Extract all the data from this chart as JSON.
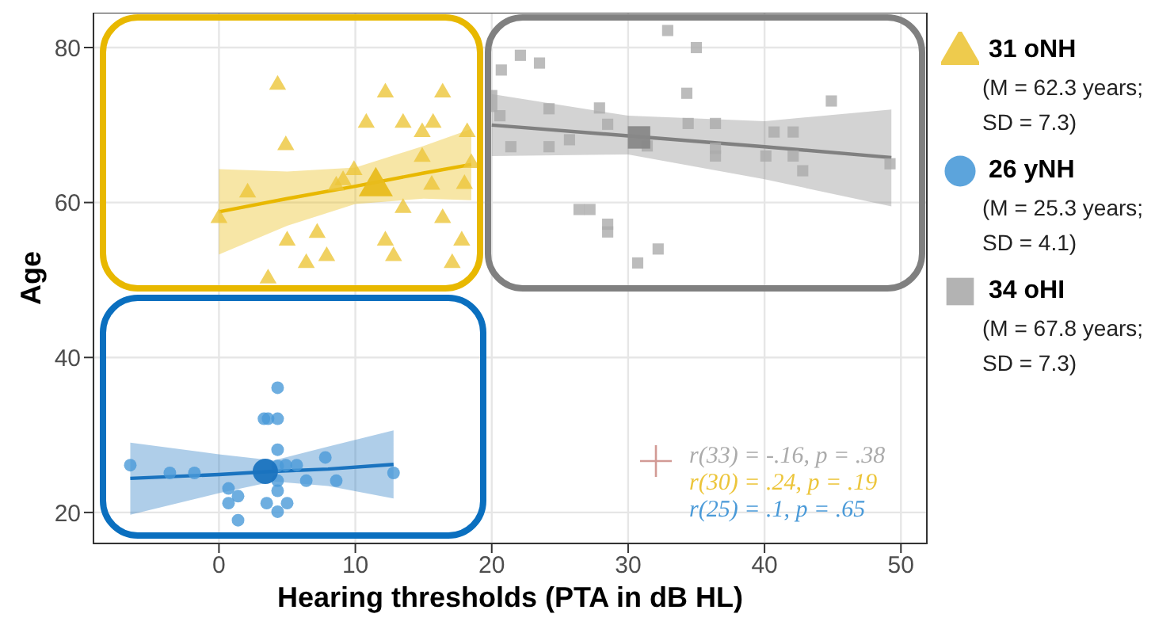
{
  "chart_data": {
    "type": "scatter",
    "xlabel": "Hearing thresholds (PTA in dB HL)",
    "ylabel": "Age",
    "xlim": [
      -9.2,
      51.9
    ],
    "ylim": [
      16,
      84.5
    ],
    "xticks": [
      0,
      10,
      20,
      30,
      40,
      50
    ],
    "yticks": [
      20,
      40,
      60,
      80
    ],
    "grid": true,
    "legend": "right",
    "series": [
      {
        "name": "31 oNH",
        "color": "#ecc53a",
        "marker": "triangle",
        "x": [
          0,
          2.1,
          4.3,
          4.9,
          5.0,
          3.6,
          6.4,
          7.2,
          7.9,
          8.6,
          9.1,
          9.9,
          10.8,
          12.2,
          12.2,
          12.8,
          13.5,
          13.5,
          14.9,
          14.9,
          15.7,
          15.6,
          16.4,
          16.4,
          17.1,
          18.0,
          17.8,
          18.2,
          18.5
        ],
        "values": [
          58.1,
          61.4,
          75.3,
          67.5,
          55.2,
          50.3,
          52.3,
          56.2,
          53.2,
          62.3,
          63.0,
          64.3,
          70.4,
          74.3,
          55.2,
          53.2,
          70.4,
          59.4,
          69.2,
          66.0,
          70.4,
          62.4,
          74.3,
          58.1,
          52.3,
          62.5,
          55.2,
          69.2,
          65.2
        ]
      },
      {
        "name": "26 yNH",
        "color": "#4a9ad8",
        "marker": "circle",
        "x": [
          -6.5,
          -3.6,
          -1.8,
          0.7,
          0.7,
          1.4,
          1.4,
          3.3,
          3.6,
          3.5,
          4.3,
          4.3,
          4.3,
          4.3,
          4.3,
          4.3,
          5.0,
          4.9,
          5.7,
          6.4,
          7.8,
          8.6,
          12.8,
          4.3
        ],
        "values": [
          26.1,
          25.1,
          25.1,
          23.1,
          21.2,
          22.1,
          19.0,
          32.1,
          32.1,
          21.2,
          36.1,
          32.1,
          28.1,
          24.1,
          22.8,
          20.1,
          21.2,
          26.1,
          26.1,
          24.1,
          27.1,
          24.1,
          25.1,
          26.0
        ]
      },
      {
        "name": "34 oHI",
        "color": "#ababab",
        "marker": "square",
        "x": [
          20.0,
          20.7,
          22.1,
          23.5,
          20.0,
          20.6,
          21.4,
          24.2,
          24.2,
          25.7,
          26.4,
          27.2,
          27.9,
          28.5,
          28.5,
          28.5,
          30.7,
          31.4,
          32.2,
          32.9,
          34.4,
          35.0,
          34.3,
          36.4,
          36.4,
          36.4,
          40.1,
          40.7,
          42.1,
          42.1,
          42.8,
          44.9,
          49.2
        ],
        "values": [
          73.8,
          77.1,
          79.0,
          78.0,
          72.4,
          71.2,
          67.2,
          72.1,
          67.2,
          68.1,
          59.1,
          59.1,
          72.2,
          70.1,
          57.2,
          56.2,
          52.2,
          67.3,
          54.0,
          82.2,
          70.2,
          80.0,
          74.1,
          70.2,
          66.0,
          67.0,
          66.0,
          69.1,
          69.1,
          66.0,
          64.1,
          73.1,
          65.0
        ]
      },
      {
        "type": "bubble",
        "color": "#e8bc1c",
        "marker": "triangle",
        "x": [
          11.5
        ],
        "values": [
          62.3
        ],
        "sizes": [
          1
        ]
      },
      {
        "type": "bubble",
        "color": "#1a73bf",
        "marker": "circle",
        "x": [
          3.4
        ],
        "values": [
          25.3
        ],
        "sizes": [
          1
        ]
      },
      {
        "type": "bubble",
        "color": "#888888",
        "marker": "square",
        "x": [
          30.8
        ],
        "values": [
          68.4
        ],
        "sizes": [
          1
        ]
      },
      {
        "type": "line",
        "color": "#e8b800",
        "x": [
          0,
          5,
          10,
          15,
          18.5
        ],
        "values": [
          58.8,
          60.5,
          62.1,
          63.8,
          64.9
        ],
        "lower": [
          53.3,
          57,
          59.8,
          60.5,
          60.3
        ],
        "upper": [
          64.3,
          64,
          64.5,
          67.3,
          69.5
        ]
      },
      {
        "type": "line",
        "color": "#1a73bf",
        "x": [
          -6.5,
          0,
          4,
          8,
          12.8
        ],
        "values": [
          24.4,
          24.9,
          25.3,
          25.6,
          26.2
        ],
        "lower": [
          19.7,
          22.5,
          24,
          23.4,
          21.8
        ],
        "upper": [
          29,
          27.5,
          26.7,
          28.5,
          30.6
        ]
      },
      {
        "type": "line",
        "color": "#808080",
        "x": [
          20,
          30,
          40,
          49.3
        ],
        "values": [
          70,
          68.6,
          67.2,
          65.8
        ],
        "lower": [
          66,
          66.2,
          63,
          59.5
        ],
        "upper": [
          74,
          71.2,
          70.5,
          72
        ]
      }
    ],
    "annotations": [
      "(M = 62.3 years; SD = 7.3)",
      "(M = 25.3 years; SD = 4.1)",
      "(M = 67.8 years; SD = 7.3)",
      "r(33) = -.16, p = .38",
      "r(30) = .24, p = .19",
      "r(25) = .1, p = .65"
    ]
  }
}
